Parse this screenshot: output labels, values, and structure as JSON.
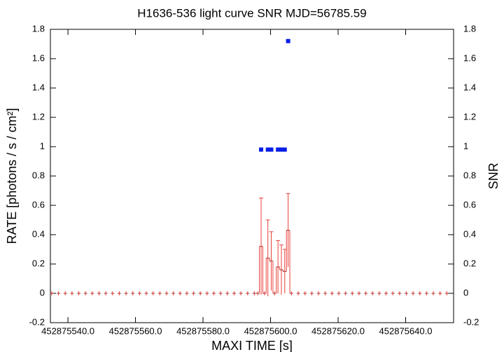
{
  "chart_data": {
    "type": "errorbar-step",
    "title": "H1636-536 light curve  SNR MJD=56785.59",
    "xlabel": "MAXI TIME [s]",
    "ylabel": "RATE [photons / s / cm²]",
    "y2label": "SNR",
    "xlim": [
      452875534.8,
      452875654.2
    ],
    "xticks": [
      {
        "value": 452875540,
        "label": "452875540.0"
      },
      {
        "value": 452875560,
        "label": "452875560.0"
      },
      {
        "value": 452875580,
        "label": "452875580.0"
      },
      {
        "value": 452875600,
        "label": "452875600.0"
      },
      {
        "value": 452875620,
        "label": "452875620.0"
      },
      {
        "value": 452875640,
        "label": "452875640.0"
      }
    ],
    "ylim": [
      -0.2,
      1.8
    ],
    "yticks": [
      -0.2,
      0,
      0.2,
      0.4,
      0.6,
      0.8,
      1,
      1.2,
      1.4,
      1.6,
      1.8
    ],
    "y2lim": [
      -0.2,
      1.8
    ],
    "y2ticks": [
      -0.2,
      0,
      0.2,
      0.4,
      0.6,
      0.8,
      1,
      1.2,
      1.4,
      1.6,
      1.8
    ],
    "series": [
      {
        "name": "RATE",
        "color": "#e8403a",
        "x": [
          452875535.2,
          452875537.2,
          452875539.2,
          452875541.2,
          452875543.2,
          452875545.2,
          452875547.2,
          452875549.2,
          452875551.2,
          452875553.2,
          452875555.2,
          452875557.2,
          452875559.2,
          452875561.2,
          452875563.2,
          452875565.2,
          452875567.2,
          452875569.2,
          452875571.2,
          452875573.2,
          452875575.2,
          452875577.2,
          452875579.2,
          452875581.2,
          452875583.2,
          452875585.2,
          452875587.2,
          452875589.2,
          452875591.2,
          452875593.2,
          452875595.2,
          452875596.2,
          452875597.2,
          452875598.2,
          452875599.2,
          452875600.2,
          452875601.2,
          452875602.2,
          452875603.2,
          452875604.2,
          452875605.2,
          452875606.2,
          452875608.2,
          452875610.2,
          452875612.2,
          452875614.2,
          452875616.2,
          452875618.2,
          452875620.2,
          452875622.2,
          452875624.2,
          452875626.2,
          452875628.2,
          452875630.2,
          452875632.2,
          452875634.2,
          452875636.2,
          452875638.2,
          452875640.2,
          452875642.2,
          452875644.2,
          452875646.2,
          452875648.2,
          452875650.2,
          452875652.2
        ],
        "values": [
          0,
          0,
          0,
          0,
          0,
          0,
          0,
          0,
          0,
          0,
          0,
          0,
          0,
          0,
          0,
          0,
          0,
          0,
          0,
          0,
          0,
          0,
          0,
          0,
          0,
          0,
          0,
          0,
          0,
          0,
          0,
          0,
          0.32,
          0,
          0.24,
          0.22,
          0,
          0.18,
          0.16,
          0.15,
          0.43,
          0,
          0,
          0,
          0,
          0,
          0,
          0,
          0,
          0,
          0,
          0,
          0,
          0,
          0,
          0,
          0,
          0,
          0,
          0,
          0,
          0,
          0,
          0,
          0
        ],
        "errors": [
          0,
          0,
          0,
          0,
          0,
          0,
          0,
          0,
          0,
          0,
          0,
          0,
          0,
          0,
          0,
          0,
          0,
          0,
          0,
          0,
          0,
          0,
          0,
          0,
          0,
          0,
          0,
          0,
          0,
          0,
          0,
          0,
          0.33,
          0,
          0.26,
          0.2,
          0,
          0.18,
          0.17,
          0.15,
          0.25,
          0,
          0,
          0,
          0,
          0,
          0,
          0,
          0,
          0,
          0,
          0,
          0,
          0,
          0,
          0,
          0,
          0,
          0,
          0,
          0,
          0,
          0,
          0,
          0
        ]
      },
      {
        "name": "SNR",
        "color": "#0a1ee8",
        "axis": "y2",
        "x": [
          452875597.2,
          452875599.2,
          452875600.2,
          452875602.2,
          452875603.2,
          452875604.2,
          452875605.2
        ],
        "values": [
          0.98,
          0.98,
          0.98,
          0.98,
          0.98,
          0.98,
          1.72
        ]
      }
    ]
  }
}
